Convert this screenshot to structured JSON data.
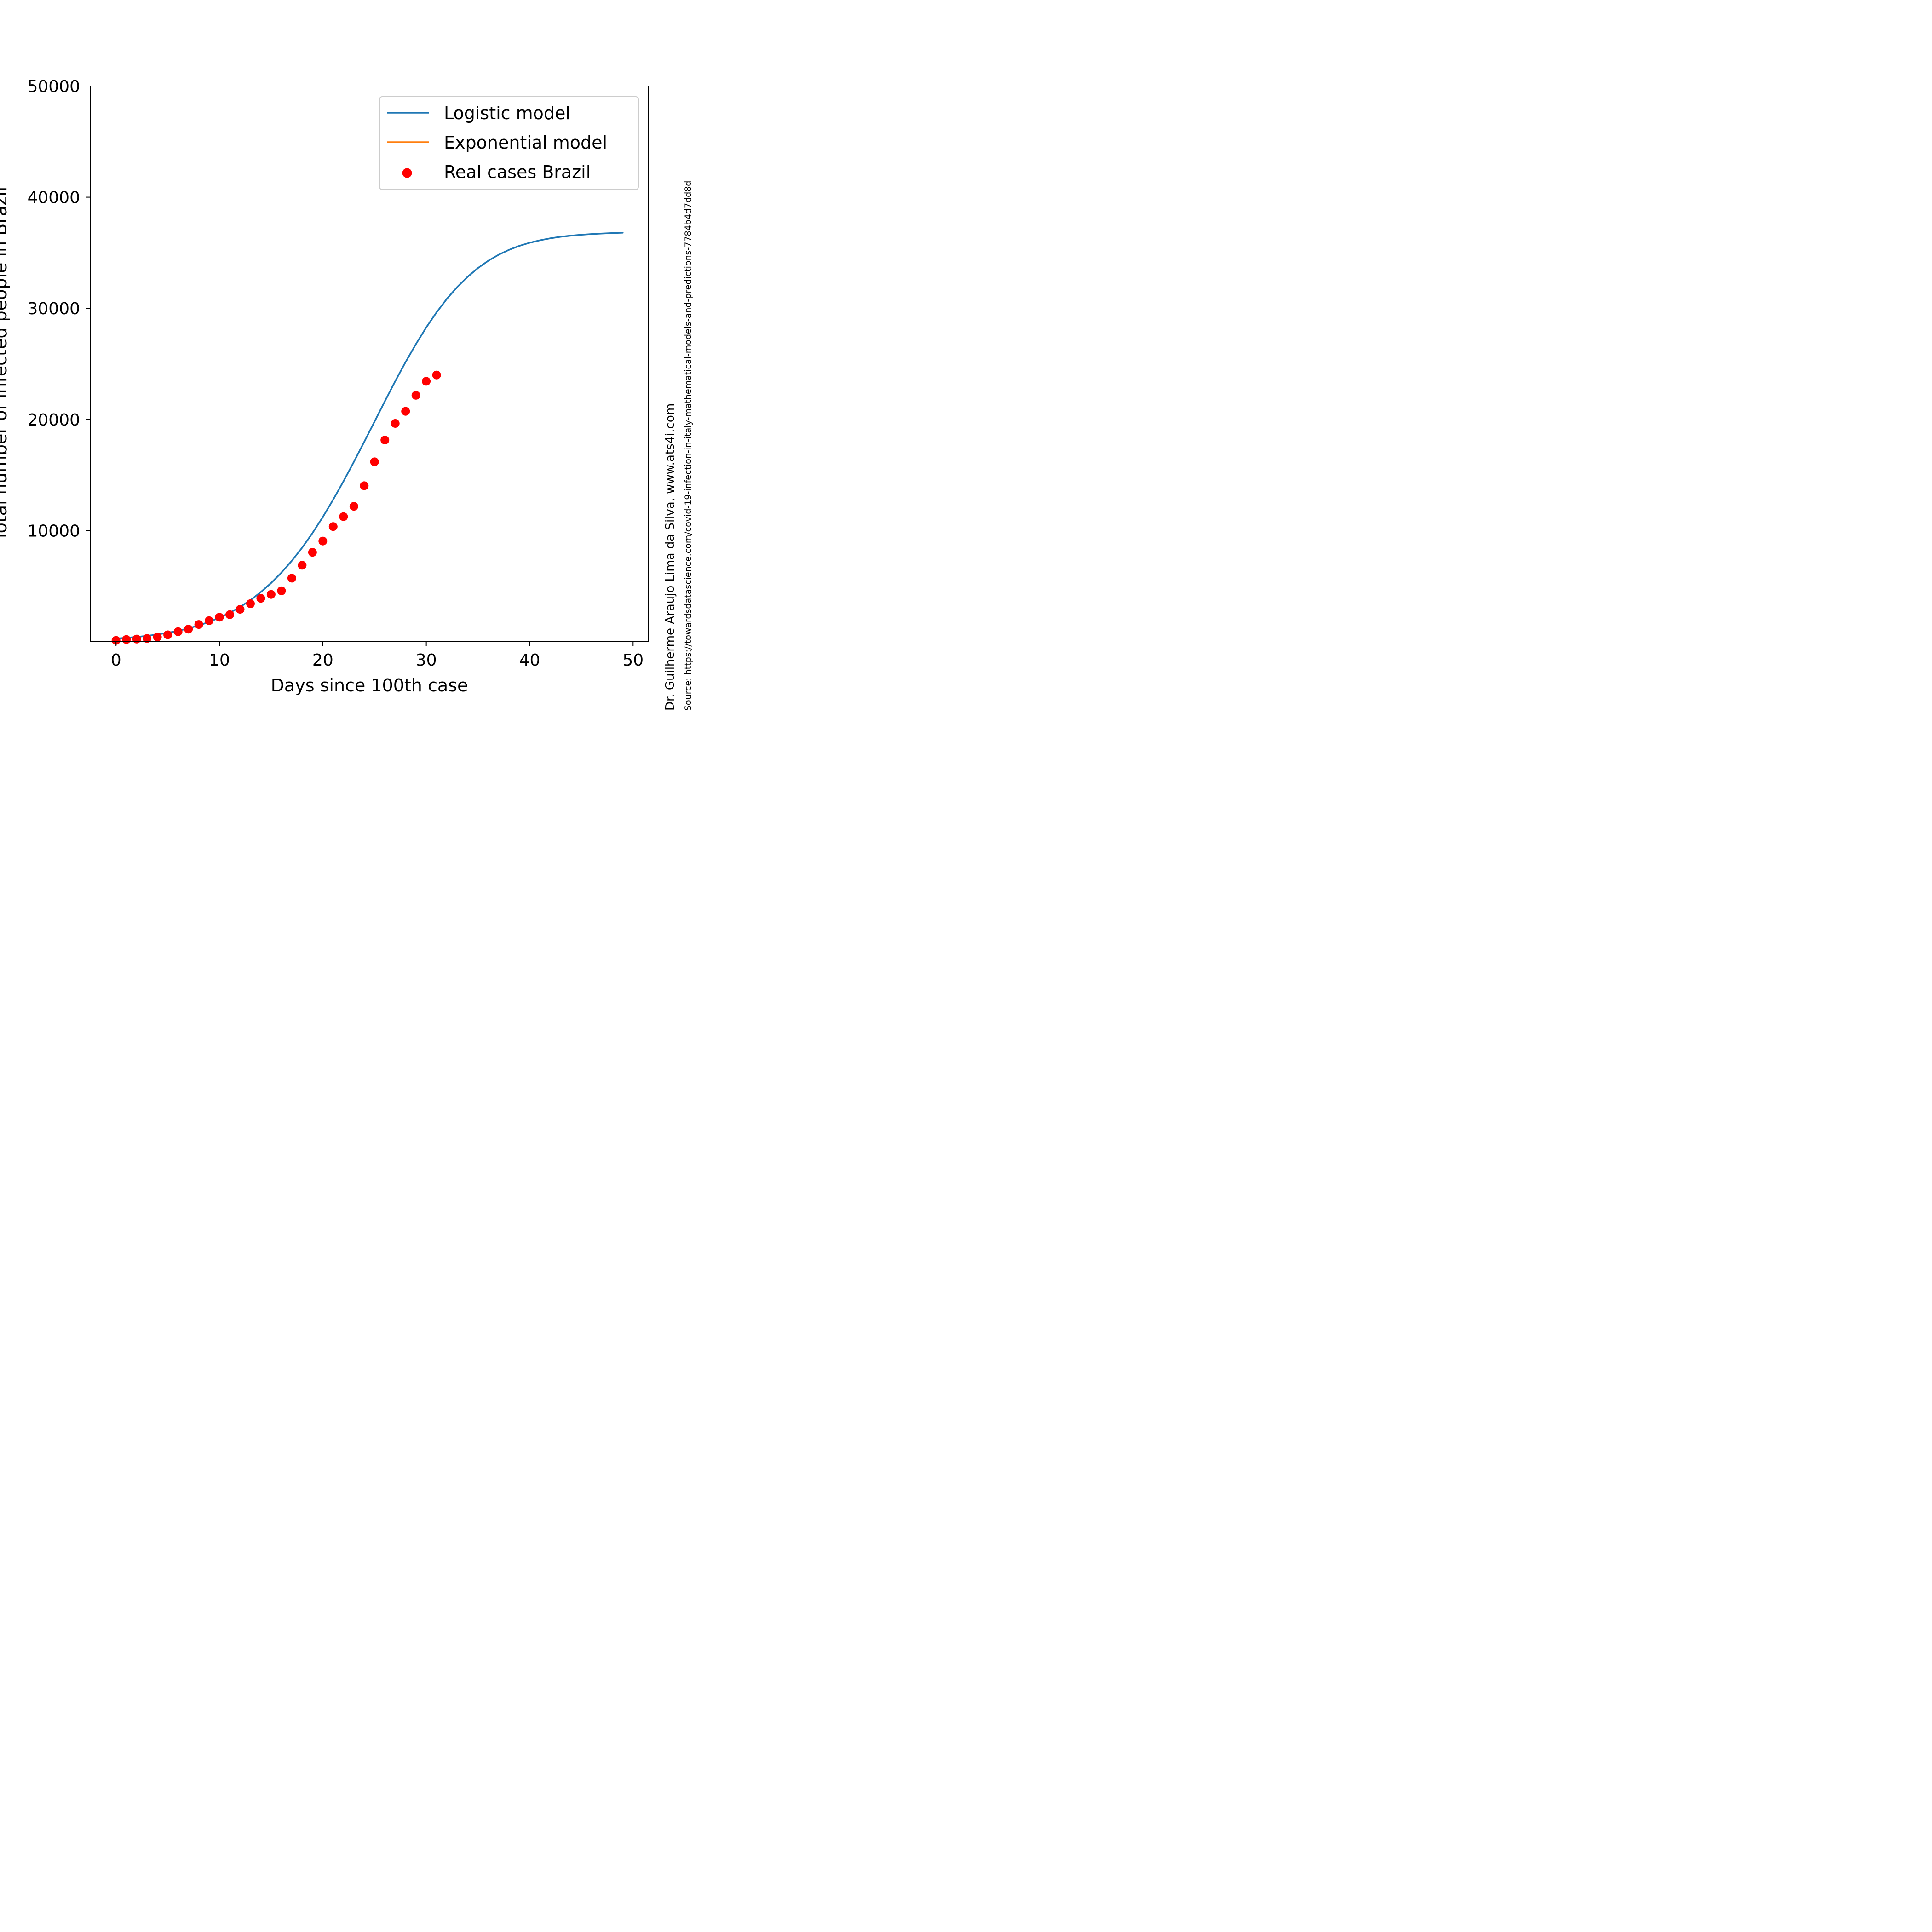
{
  "chart_data": {
    "type": "scatter",
    "xlabel": "Days since 100th case",
    "ylabel": "Total number of infected people in Brazil",
    "xlim": [
      -2.5,
      51.5
    ],
    "ylim": [
      0,
      50000
    ],
    "xticks": [
      0,
      10,
      20,
      30,
      40,
      50
    ],
    "yticks": [
      10000,
      20000,
      30000,
      40000,
      50000
    ],
    "grid": false,
    "legend_position": "top-right",
    "series": [
      {
        "name": "Logistic model",
        "kind": "line",
        "color": "#1f77b4",
        "x": [
          0,
          1,
          2,
          3,
          4,
          5,
          6,
          7,
          8,
          9,
          10,
          11,
          12,
          13,
          14,
          15,
          16,
          17,
          18,
          19,
          20,
          21,
          22,
          23,
          24,
          25,
          26,
          27,
          28,
          29,
          30,
          31,
          32,
          33,
          34,
          35,
          36,
          37,
          38,
          39,
          40,
          41,
          42,
          43,
          44,
          45,
          46,
          47,
          48,
          49
        ],
        "y": [
          280,
          350,
          430,
          530,
          650,
          800,
          980,
          1200,
          1460,
          1780,
          2160,
          2600,
          3120,
          3740,
          4460,
          5280,
          6220,
          7280,
          8460,
          9780,
          11220,
          12780,
          14440,
          16180,
          17980,
          19800,
          21640,
          23440,
          25160,
          26780,
          28280,
          29640,
          30860,
          31920,
          32840,
          33620,
          34280,
          34820,
          35260,
          35620,
          35900,
          36120,
          36300,
          36440,
          36540,
          36620,
          36680,
          36730,
          36770,
          36800
        ]
      },
      {
        "name": "Exponential model",
        "kind": "line",
        "color": "#ff7f0e",
        "x": [],
        "y": []
      },
      {
        "name": "Real cases Brazil",
        "kind": "scatter",
        "color": "#ff0000",
        "x": [
          0,
          1,
          2,
          3,
          4,
          5,
          6,
          7,
          8,
          9,
          10,
          11,
          12,
          13,
          14,
          15,
          16,
          17,
          18,
          19,
          20,
          21,
          22,
          23,
          24,
          25,
          26,
          27,
          28,
          29,
          30,
          31
        ],
        "y": [
          121,
          200,
          234,
          291,
          428,
          621,
          904,
          1128,
          1546,
          1891,
          2201,
          2433,
          2915,
          3417,
          3904,
          4256,
          4579,
          5717,
          6880,
          8044,
          9056,
          10360,
          11254,
          12183,
          14034,
          16188,
          18145,
          19638,
          20727,
          22169,
          23430,
          24000
        ]
      }
    ]
  },
  "credits": {
    "author": "Dr. Guilherme Araujo Lima da Silva, www.ats4i.com",
    "source": "Source: https://towardsdatascience.com/covid-19-infection-in-italy-mathematical-models-and-predictions-7784b4d7dd8d"
  }
}
